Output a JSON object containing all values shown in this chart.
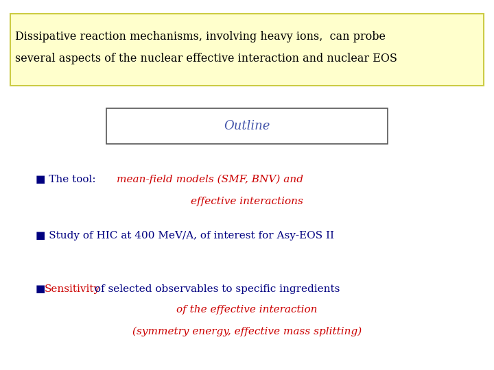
{
  "background_color": "#ffffff",
  "title_box_bg": "#ffffcc",
  "title_line1": "Dissipative reaction mechanisms, involving heavy ions,  can probe",
  "title_line2": "several aspects of the nuclear effective interaction and nuclear EOS",
  "title_text_color": "#000000",
  "outline_text": "Outline",
  "outline_text_color": "#4455aa",
  "outline_box_color": "#555555",
  "blue_color": "#000080",
  "red_color": "#cc0000",
  "bullet_char": "■",
  "b1_blue1": "■ The tool:  ",
  "b1_red1": "mean-field models (SMF, BNV) and",
  "b1_red2": "effective interactions",
  "b2_blue": "■ Study of HIC at 400 MeV/A, of interest for Asy-EOS II",
  "b3_bullet": "■ ",
  "b3_red_word": "Sensitivity",
  "b3_blue_rest": " of selected observables to specific ingredients",
  "b3_red2": "of the effective interaction",
  "b3_red3": "(symmetry energy, effective mass splitting)"
}
